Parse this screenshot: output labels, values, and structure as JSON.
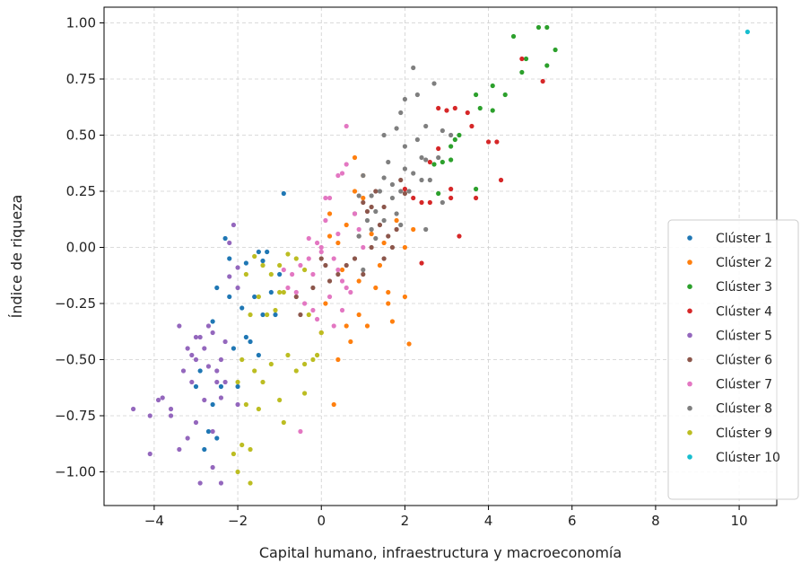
{
  "chart_data": {
    "type": "scatter",
    "title": "",
    "xlabel": "Capital humano, infraestructura y macroeconomía",
    "ylabel": "Índice de riqueza",
    "xlim": [
      -5.2,
      10.9
    ],
    "ylim": [
      -1.15,
      1.07
    ],
    "xticks": [
      -4,
      -2,
      0,
      2,
      4,
      6,
      8,
      10
    ],
    "yticks": [
      -1.0,
      -0.75,
      -0.5,
      -0.25,
      0.0,
      0.25,
      0.5,
      0.75,
      1.0
    ],
    "xtick_labels": [
      "−4",
      "−2",
      "0",
      "2",
      "4",
      "6",
      "8",
      "10"
    ],
    "ytick_labels": [
      "−1.00",
      "−0.75",
      "−0.50",
      "−0.25",
      "0.00",
      "0.25",
      "0.50",
      "0.75",
      "1.00"
    ],
    "grid": true,
    "legend_position": "lower-right",
    "series": [
      {
        "name": "Clúster 1",
        "color": "#1f77b4",
        "points": [
          [
            -0.9,
            0.24
          ],
          [
            -1.5,
            -0.02
          ],
          [
            -2.2,
            -0.05
          ],
          [
            -1.8,
            -0.07
          ],
          [
            -2.5,
            -0.18
          ],
          [
            -2.2,
            -0.22
          ],
          [
            -1.6,
            -0.22
          ],
          [
            -1.4,
            -0.3
          ],
          [
            -1.8,
            -0.4
          ],
          [
            -2.6,
            -0.33
          ],
          [
            -2.1,
            -0.45
          ],
          [
            -2.0,
            -0.62
          ],
          [
            -2.6,
            -0.7
          ],
          [
            -2.5,
            -0.85
          ],
          [
            -2.8,
            -0.9
          ],
          [
            -2.4,
            -0.62
          ],
          [
            -1.5,
            -0.48
          ],
          [
            -1.2,
            -0.2
          ],
          [
            -1.0,
            -0.12
          ],
          [
            -2.9,
            -0.55
          ],
          [
            -1.7,
            -0.42
          ],
          [
            -1.3,
            -0.02
          ],
          [
            -2.3,
            0.04
          ],
          [
            -1.1,
            -0.3
          ],
          [
            -3.0,
            -0.62
          ],
          [
            -2.7,
            -0.82
          ],
          [
            -1.9,
            -0.27
          ],
          [
            -1.4,
            -0.06
          ]
        ]
      },
      {
        "name": "Clúster 2",
        "color": "#ff7f0e",
        "points": [
          [
            0.2,
            0.05
          ],
          [
            0.4,
            0.02
          ],
          [
            0.6,
            0.1
          ],
          [
            0.8,
            0.25
          ],
          [
            1.0,
            0.22
          ],
          [
            1.2,
            0.06
          ],
          [
            1.5,
            0.02
          ],
          [
            1.8,
            0.12
          ],
          [
            2.0,
            0.0
          ],
          [
            2.2,
            0.08
          ],
          [
            0.5,
            -0.1
          ],
          [
            0.9,
            -0.15
          ],
          [
            1.3,
            -0.18
          ],
          [
            1.6,
            -0.2
          ],
          [
            2.0,
            -0.22
          ],
          [
            0.1,
            -0.25
          ],
          [
            0.7,
            -0.42
          ],
          [
            1.1,
            -0.35
          ],
          [
            1.6,
            -0.25
          ],
          [
            2.1,
            -0.43
          ],
          [
            0.3,
            -0.7
          ],
          [
            0.9,
            -0.3
          ],
          [
            0.6,
            -0.35
          ],
          [
            1.7,
            -0.33
          ],
          [
            1.0,
            0.32
          ],
          [
            0.8,
            0.4
          ],
          [
            0.2,
            0.15
          ],
          [
            1.4,
            -0.08
          ],
          [
            0.4,
            -0.5
          ],
          [
            0.0,
            -0.38
          ]
        ]
      },
      {
        "name": "Clúster 3",
        "color": "#2ca02c",
        "points": [
          [
            5.2,
            0.98
          ],
          [
            5.4,
            0.98
          ],
          [
            5.6,
            0.88
          ],
          [
            4.6,
            0.94
          ],
          [
            4.8,
            0.78
          ],
          [
            5.4,
            0.81
          ],
          [
            4.1,
            0.72
          ],
          [
            3.7,
            0.68
          ],
          [
            4.4,
            0.68
          ],
          [
            3.8,
            0.62
          ],
          [
            4.1,
            0.61
          ],
          [
            3.2,
            0.48
          ],
          [
            3.3,
            0.5
          ],
          [
            3.1,
            0.45
          ],
          [
            2.9,
            0.38
          ],
          [
            3.1,
            0.39
          ],
          [
            2.7,
            0.37
          ],
          [
            2.8,
            0.24
          ],
          [
            3.7,
            0.26
          ],
          [
            4.9,
            0.84
          ]
        ]
      },
      {
        "name": "Clúster 4",
        "color": "#d62728",
        "points": [
          [
            4.8,
            0.84
          ],
          [
            5.3,
            0.74
          ],
          [
            3.2,
            0.62
          ],
          [
            3.5,
            0.6
          ],
          [
            3.6,
            0.54
          ],
          [
            3.0,
            0.61
          ],
          [
            4.0,
            0.47
          ],
          [
            4.2,
            0.47
          ],
          [
            2.8,
            0.44
          ],
          [
            2.6,
            0.38
          ],
          [
            3.1,
            0.26
          ],
          [
            2.4,
            0.2
          ],
          [
            2.2,
            0.22
          ],
          [
            2.0,
            0.26
          ],
          [
            2.6,
            0.2
          ],
          [
            3.1,
            0.22
          ],
          [
            4.3,
            0.3
          ],
          [
            3.7,
            0.22
          ],
          [
            2.8,
            0.62
          ],
          [
            3.3,
            0.05
          ],
          [
            2.4,
            -0.07
          ]
        ]
      },
      {
        "name": "Clúster 5",
        "color": "#9467bd",
        "points": [
          [
            -4.5,
            -0.72
          ],
          [
            -4.1,
            -0.75
          ],
          [
            -4.1,
            -0.92
          ],
          [
            -3.9,
            -0.68
          ],
          [
            -3.8,
            -0.67
          ],
          [
            -3.6,
            -0.75
          ],
          [
            -3.4,
            -0.9
          ],
          [
            -3.4,
            -0.35
          ],
          [
            -3.3,
            -0.55
          ],
          [
            -3.2,
            -0.45
          ],
          [
            -3.1,
            -0.48
          ],
          [
            -3.0,
            -0.5
          ],
          [
            -2.9,
            -0.4
          ],
          [
            -2.8,
            -0.45
          ],
          [
            -2.7,
            -0.53
          ],
          [
            -2.6,
            -0.38
          ],
          [
            -2.5,
            -0.55
          ],
          [
            -2.5,
            -0.6
          ],
          [
            -2.4,
            -0.67
          ],
          [
            -2.4,
            -0.5
          ],
          [
            -2.3,
            -0.42
          ],
          [
            -2.3,
            -0.6
          ],
          [
            -2.2,
            -0.13
          ],
          [
            -2.2,
            0.02
          ],
          [
            -2.1,
            0.1
          ],
          [
            -2.0,
            -0.09
          ],
          [
            -2.0,
            -0.18
          ],
          [
            -2.6,
            -0.98
          ],
          [
            -2.9,
            -1.05
          ],
          [
            -2.4,
            -1.05
          ],
          [
            -3.0,
            -0.78
          ],
          [
            -3.6,
            -0.72
          ],
          [
            -3.2,
            -0.85
          ],
          [
            -2.6,
            -0.82
          ],
          [
            -2.0,
            -0.7
          ],
          [
            -2.7,
            -0.35
          ],
          [
            -3.0,
            -0.4
          ],
          [
            -3.1,
            -0.6
          ],
          [
            -2.8,
            -0.68
          ]
        ]
      },
      {
        "name": "Clúster 6",
        "color": "#8c564b",
        "points": [
          [
            0.8,
            0.15
          ],
          [
            1.0,
            0.2
          ],
          [
            1.2,
            0.18
          ],
          [
            1.4,
            0.1
          ],
          [
            1.6,
            0.05
          ],
          [
            1.5,
            0.18
          ],
          [
            0.9,
            0.05
          ],
          [
            0.8,
            -0.05
          ],
          [
            1.2,
            0.0
          ],
          [
            1.5,
            -0.05
          ],
          [
            1.3,
            0.25
          ],
          [
            1.0,
            -0.12
          ],
          [
            0.6,
            -0.08
          ],
          [
            0.4,
            -0.12
          ],
          [
            0.0,
            -0.05
          ],
          [
            0.2,
            -0.15
          ],
          [
            -0.2,
            -0.18
          ],
          [
            -0.5,
            -0.3
          ],
          [
            -0.6,
            -0.22
          ],
          [
            0.1,
            -0.08
          ],
          [
            1.8,
            0.08
          ],
          [
            1.9,
            0.3
          ],
          [
            2.0,
            0.24
          ],
          [
            1.1,
            0.16
          ],
          [
            1.7,
            0.0
          ]
        ]
      },
      {
        "name": "Clúster 7",
        "color": "#e377c2",
        "points": [
          [
            0.6,
            0.54
          ],
          [
            0.1,
            0.22
          ],
          [
            0.2,
            0.22
          ],
          [
            0.4,
            0.32
          ],
          [
            0.5,
            0.33
          ],
          [
            0.6,
            0.37
          ],
          [
            -0.3,
            0.04
          ],
          [
            -0.1,
            0.02
          ],
          [
            0.0,
            -0.02
          ],
          [
            0.3,
            -0.05
          ],
          [
            0.4,
            -0.1
          ],
          [
            0.5,
            -0.15
          ],
          [
            0.6,
            -0.18
          ],
          [
            -0.5,
            -0.08
          ],
          [
            -0.7,
            -0.12
          ],
          [
            -0.8,
            -0.18
          ],
          [
            -0.6,
            -0.2
          ],
          [
            -0.4,
            -0.25
          ],
          [
            -0.2,
            -0.28
          ],
          [
            -0.1,
            -0.32
          ],
          [
            0.3,
            -0.35
          ],
          [
            0.5,
            -0.28
          ],
          [
            -0.5,
            -0.82
          ],
          [
            0.0,
            0.0
          ],
          [
            0.2,
            -0.22
          ],
          [
            0.8,
            0.15
          ],
          [
            -0.3,
            -0.05
          ],
          [
            -0.9,
            -0.1
          ],
          [
            0.7,
            -0.2
          ],
          [
            1.0,
            0.0
          ],
          [
            0.9,
            0.08
          ],
          [
            -0.2,
            -0.12
          ],
          [
            0.4,
            0.06
          ],
          [
            0.1,
            0.12
          ]
        ]
      },
      {
        "name": "Clúster 8",
        "color": "#7f7f7f",
        "points": [
          [
            2.2,
            0.8
          ],
          [
            2.0,
            0.66
          ],
          [
            2.3,
            0.68
          ],
          [
            2.7,
            0.73
          ],
          [
            1.5,
            0.5
          ],
          [
            1.8,
            0.53
          ],
          [
            1.9,
            0.6
          ],
          [
            2.5,
            0.54
          ],
          [
            3.1,
            0.5
          ],
          [
            2.9,
            0.52
          ],
          [
            2.5,
            0.39
          ],
          [
            2.4,
            0.4
          ],
          [
            2.2,
            0.33
          ],
          [
            2.0,
            0.35
          ],
          [
            1.9,
            0.25
          ],
          [
            1.7,
            0.22
          ],
          [
            1.5,
            0.31
          ],
          [
            1.4,
            0.25
          ],
          [
            1.2,
            0.23
          ],
          [
            1.0,
            0.32
          ],
          [
            0.9,
            0.23
          ],
          [
            1.1,
            0.12
          ],
          [
            1.3,
            0.16
          ],
          [
            1.5,
            0.12
          ],
          [
            1.8,
            0.15
          ],
          [
            2.1,
            0.25
          ],
          [
            2.4,
            0.3
          ],
          [
            2.6,
            0.3
          ],
          [
            0.9,
            0.05
          ],
          [
            1.2,
            0.08
          ],
          [
            1.9,
            0.1
          ],
          [
            2.5,
            0.08
          ],
          [
            1.0,
            -0.1
          ],
          [
            2.0,
            0.45
          ],
          [
            2.3,
            0.48
          ],
          [
            1.6,
            0.38
          ],
          [
            2.8,
            0.4
          ],
          [
            1.3,
            0.04
          ],
          [
            1.7,
            0.28
          ],
          [
            2.9,
            0.2
          ]
        ]
      },
      {
        "name": "Clúster 9",
        "color": "#bcbd22",
        "points": [
          [
            -1.8,
            -0.12
          ],
          [
            -1.6,
            -0.04
          ],
          [
            -1.4,
            -0.08
          ],
          [
            -1.2,
            -0.12
          ],
          [
            -1.0,
            -0.08
          ],
          [
            -0.8,
            -0.03
          ],
          [
            -0.6,
            -0.05
          ],
          [
            -0.4,
            -0.1
          ],
          [
            -1.7,
            -0.3
          ],
          [
            -1.5,
            -0.22
          ],
          [
            -1.3,
            -0.3
          ],
          [
            -1.1,
            -0.28
          ],
          [
            -0.9,
            -0.2
          ],
          [
            -1.9,
            -0.5
          ],
          [
            -1.6,
            -0.55
          ],
          [
            -1.4,
            -0.6
          ],
          [
            -1.2,
            -0.52
          ],
          [
            -0.8,
            -0.48
          ],
          [
            -0.6,
            -0.55
          ],
          [
            -0.4,
            -0.52
          ],
          [
            -0.2,
            -0.5
          ],
          [
            -1.8,
            -0.7
          ],
          [
            -1.5,
            -0.72
          ],
          [
            -1.0,
            -0.68
          ],
          [
            -0.9,
            -0.78
          ],
          [
            -0.4,
            -0.65
          ],
          [
            -2.1,
            -0.92
          ],
          [
            -1.9,
            -0.88
          ],
          [
            -1.7,
            -0.9
          ],
          [
            -1.7,
            -1.05
          ],
          [
            -2.0,
            -1.0
          ],
          [
            -0.1,
            -0.48
          ],
          [
            0.0,
            -0.38
          ],
          [
            -0.3,
            -0.3
          ],
          [
            -1.0,
            -0.2
          ],
          [
            -2.0,
            -0.6
          ]
        ]
      },
      {
        "name": "Clúster 10",
        "color": "#17becf",
        "points": [
          [
            10.2,
            0.96
          ]
        ]
      }
    ]
  }
}
